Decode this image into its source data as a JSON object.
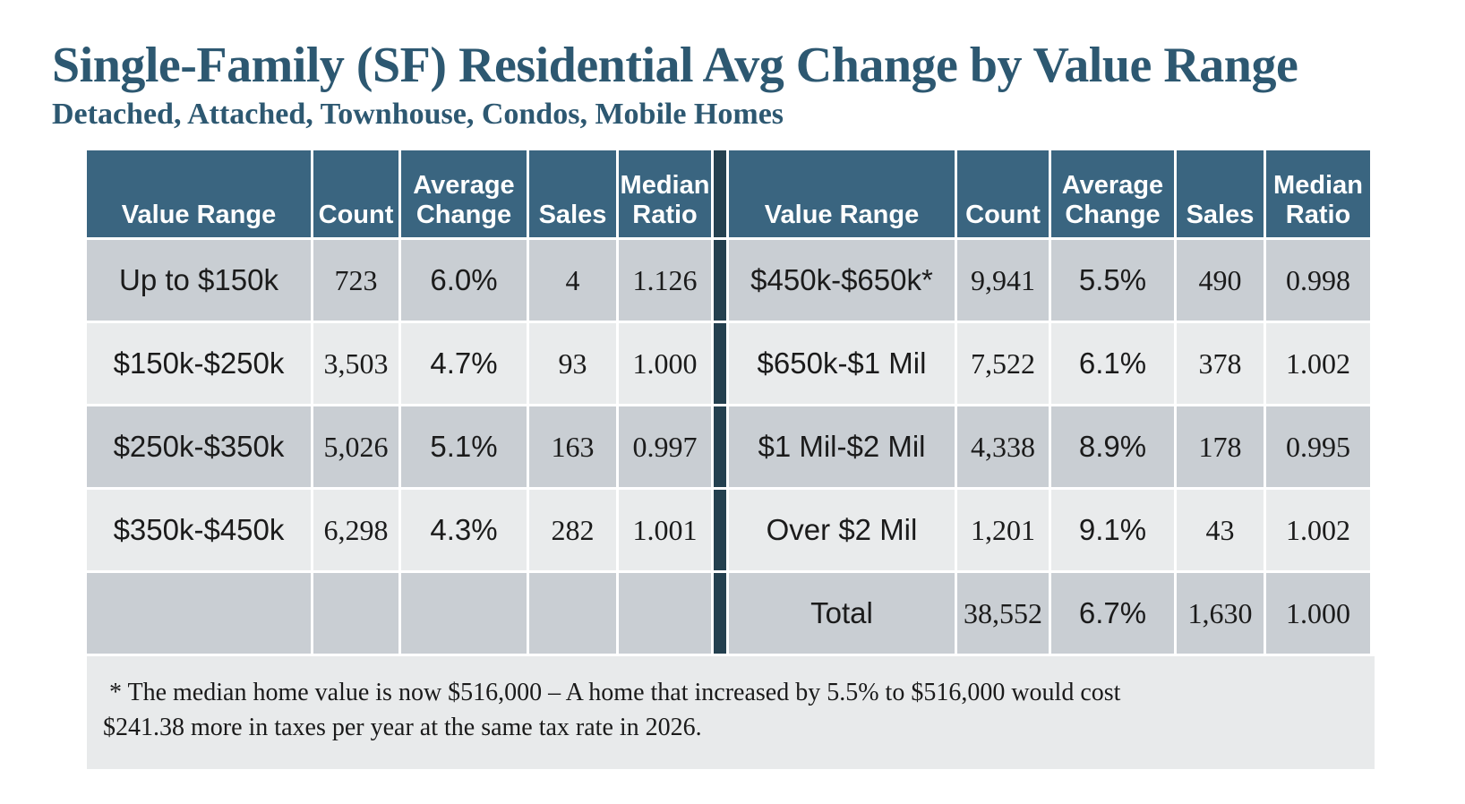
{
  "title": "Single-Family (SF) Residential Avg Change by Value Range",
  "subtitle": "Detached, Attached, Townhouse, Condos, Mobile Homes",
  "colors": {
    "header-bg": "#3a6580",
    "divider": "#24404f",
    "row-dark": "#c9ced3",
    "row-light": "#e9ebec",
    "panel": "#e8eaeb",
    "title": "#2d5871"
  },
  "table": {
    "headers": [
      "Value Range",
      "Count",
      "Average Change",
      "Sales",
      "Median Ratio"
    ],
    "left_rows": [
      [
        "Up to $150k",
        "723",
        "6.0%",
        "4",
        "1.126"
      ],
      [
        "$150k-$250k",
        "3,503",
        "4.7%",
        "93",
        "1.000"
      ],
      [
        "$250k-$350k",
        "5,026",
        "5.1%",
        "163",
        "0.997"
      ],
      [
        "$350k-$450k",
        "6,298",
        "4.3%",
        "282",
        "1.001"
      ],
      [
        "",
        "",
        "",
        "",
        ""
      ]
    ],
    "right_rows": [
      [
        "$450k-$650k*",
        "9,941",
        "5.5%",
        "490",
        "0.998"
      ],
      [
        "$650k-$1 Mil",
        "7,522",
        "6.1%",
        "378",
        "1.002"
      ],
      [
        "$1 Mil-$2 Mil",
        "4,338",
        "8.9%",
        "178",
        "0.995"
      ],
      [
        "Over $2 Mil",
        "1,201",
        "9.1%",
        "43",
        "1.002"
      ],
      [
        "Total",
        "38,552",
        "6.7%",
        "1,630",
        "1.000"
      ]
    ]
  },
  "footnote": {
    "line1": "* The median home value is now $516,000 – A home that increased by 5.5% to $516,000 would cost",
    "line2": "$241.38 more in taxes per year at the same tax rate in 2026."
  }
}
